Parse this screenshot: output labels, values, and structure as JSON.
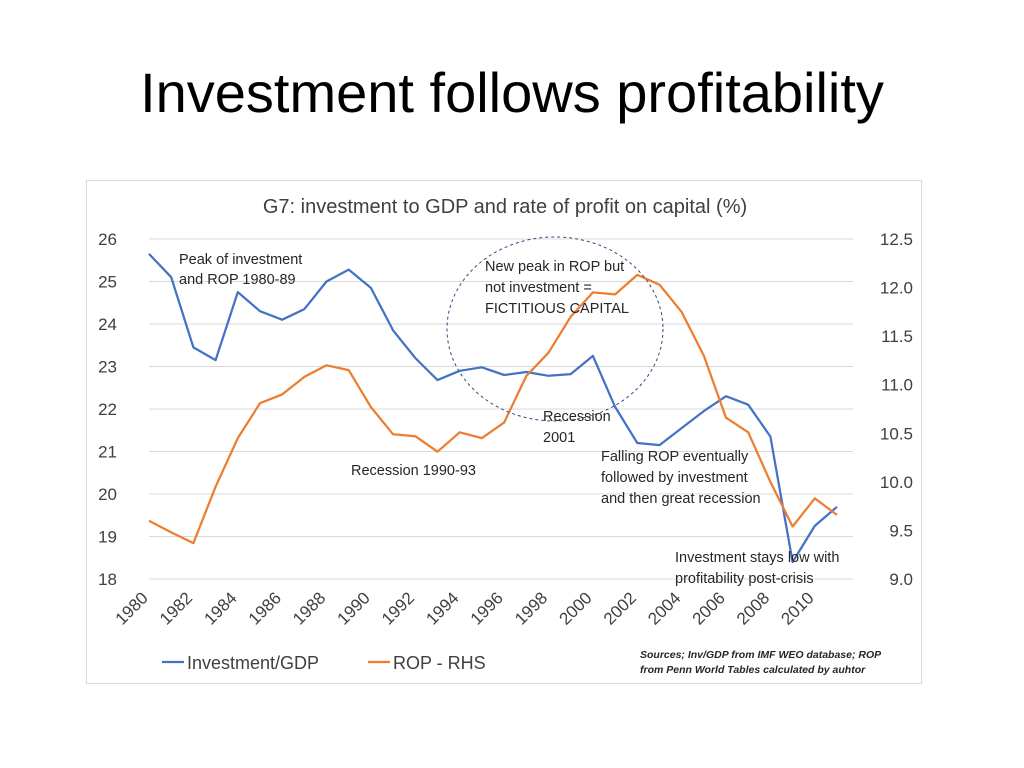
{
  "slide": {
    "title": "Investment follows profitability"
  },
  "chart_data": {
    "type": "line",
    "title": "G7: investment to GDP and rate of profit on capital (%)",
    "x": [
      1980,
      1981,
      1982,
      1983,
      1984,
      1985,
      1986,
      1987,
      1988,
      1989,
      1990,
      1991,
      1992,
      1993,
      1994,
      1995,
      1996,
      1997,
      1998,
      1999,
      2000,
      2001,
      2002,
      2003,
      2004,
      2005,
      2006,
      2007,
      2008,
      2009,
      2010,
      2011
    ],
    "x_tick_labels": [
      "1980",
      "1982",
      "1984",
      "1986",
      "1988",
      "1990",
      "1992",
      "1994",
      "1996",
      "1998",
      "2000",
      "2002",
      "2004",
      "2006",
      "2008",
      "2010"
    ],
    "y_left": {
      "ylim": [
        18,
        26
      ],
      "ticks": [
        "18",
        "19",
        "20",
        "21",
        "22",
        "23",
        "24",
        "25",
        "26"
      ]
    },
    "y_right": {
      "ylim": [
        9.0,
        12.5
      ],
      "ticks": [
        "9.0",
        "9.5",
        "10.0",
        "10.5",
        "11.0",
        "11.5",
        "12.0",
        "12.5"
      ]
    },
    "series": [
      {
        "name": "Investment/GDP",
        "axis": "left",
        "color": "#4472C4",
        "values": [
          25.65,
          25.1,
          23.45,
          23.15,
          24.75,
          24.3,
          24.1,
          24.35,
          25.0,
          25.28,
          24.85,
          23.85,
          23.2,
          22.68,
          22.9,
          22.98,
          22.8,
          22.87,
          22.78,
          22.82,
          23.25,
          22.05,
          21.2,
          21.15,
          21.55,
          21.95,
          22.3,
          22.1,
          21.35,
          18.4,
          19.25,
          19.7
        ]
      },
      {
        "name": "ROP - RHS",
        "axis": "right",
        "color": "#ED7D31",
        "values": [
          9.6,
          9.48,
          9.37,
          9.95,
          10.45,
          10.81,
          10.9,
          11.08,
          11.2,
          11.15,
          10.77,
          10.49,
          10.47,
          10.31,
          10.51,
          10.45,
          10.61,
          11.09,
          11.33,
          11.7,
          11.95,
          11.93,
          12.13,
          12.03,
          11.75,
          11.3,
          10.66,
          10.51,
          10.0,
          9.54,
          9.83,
          9.66
        ]
      }
    ],
    "legend": {
      "position": "bottom-left"
    },
    "annotations": [
      {
        "lines": [
          "Peak of investment",
          "and ROP 1980-89"
        ]
      },
      {
        "lines": [
          "New peak in ROP but",
          "not investment =",
          "FICTITIOUS CAPITAL"
        ]
      },
      {
        "lines": [
          "Recession",
          "2001"
        ]
      },
      {
        "lines": [
          "Recession 1990-93"
        ]
      },
      {
        "lines": [
          "Falling ROP eventually",
          "followed by investment",
          "and then great recession"
        ]
      },
      {
        "lines": [
          "Investment stays low with",
          "profitability post-crisis"
        ]
      }
    ],
    "source_note": [
      "Sources; Inv/GDP from IMF WEO database; ROP",
      "from Penn World Tables calculated by auhtor"
    ],
    "grid": true
  }
}
